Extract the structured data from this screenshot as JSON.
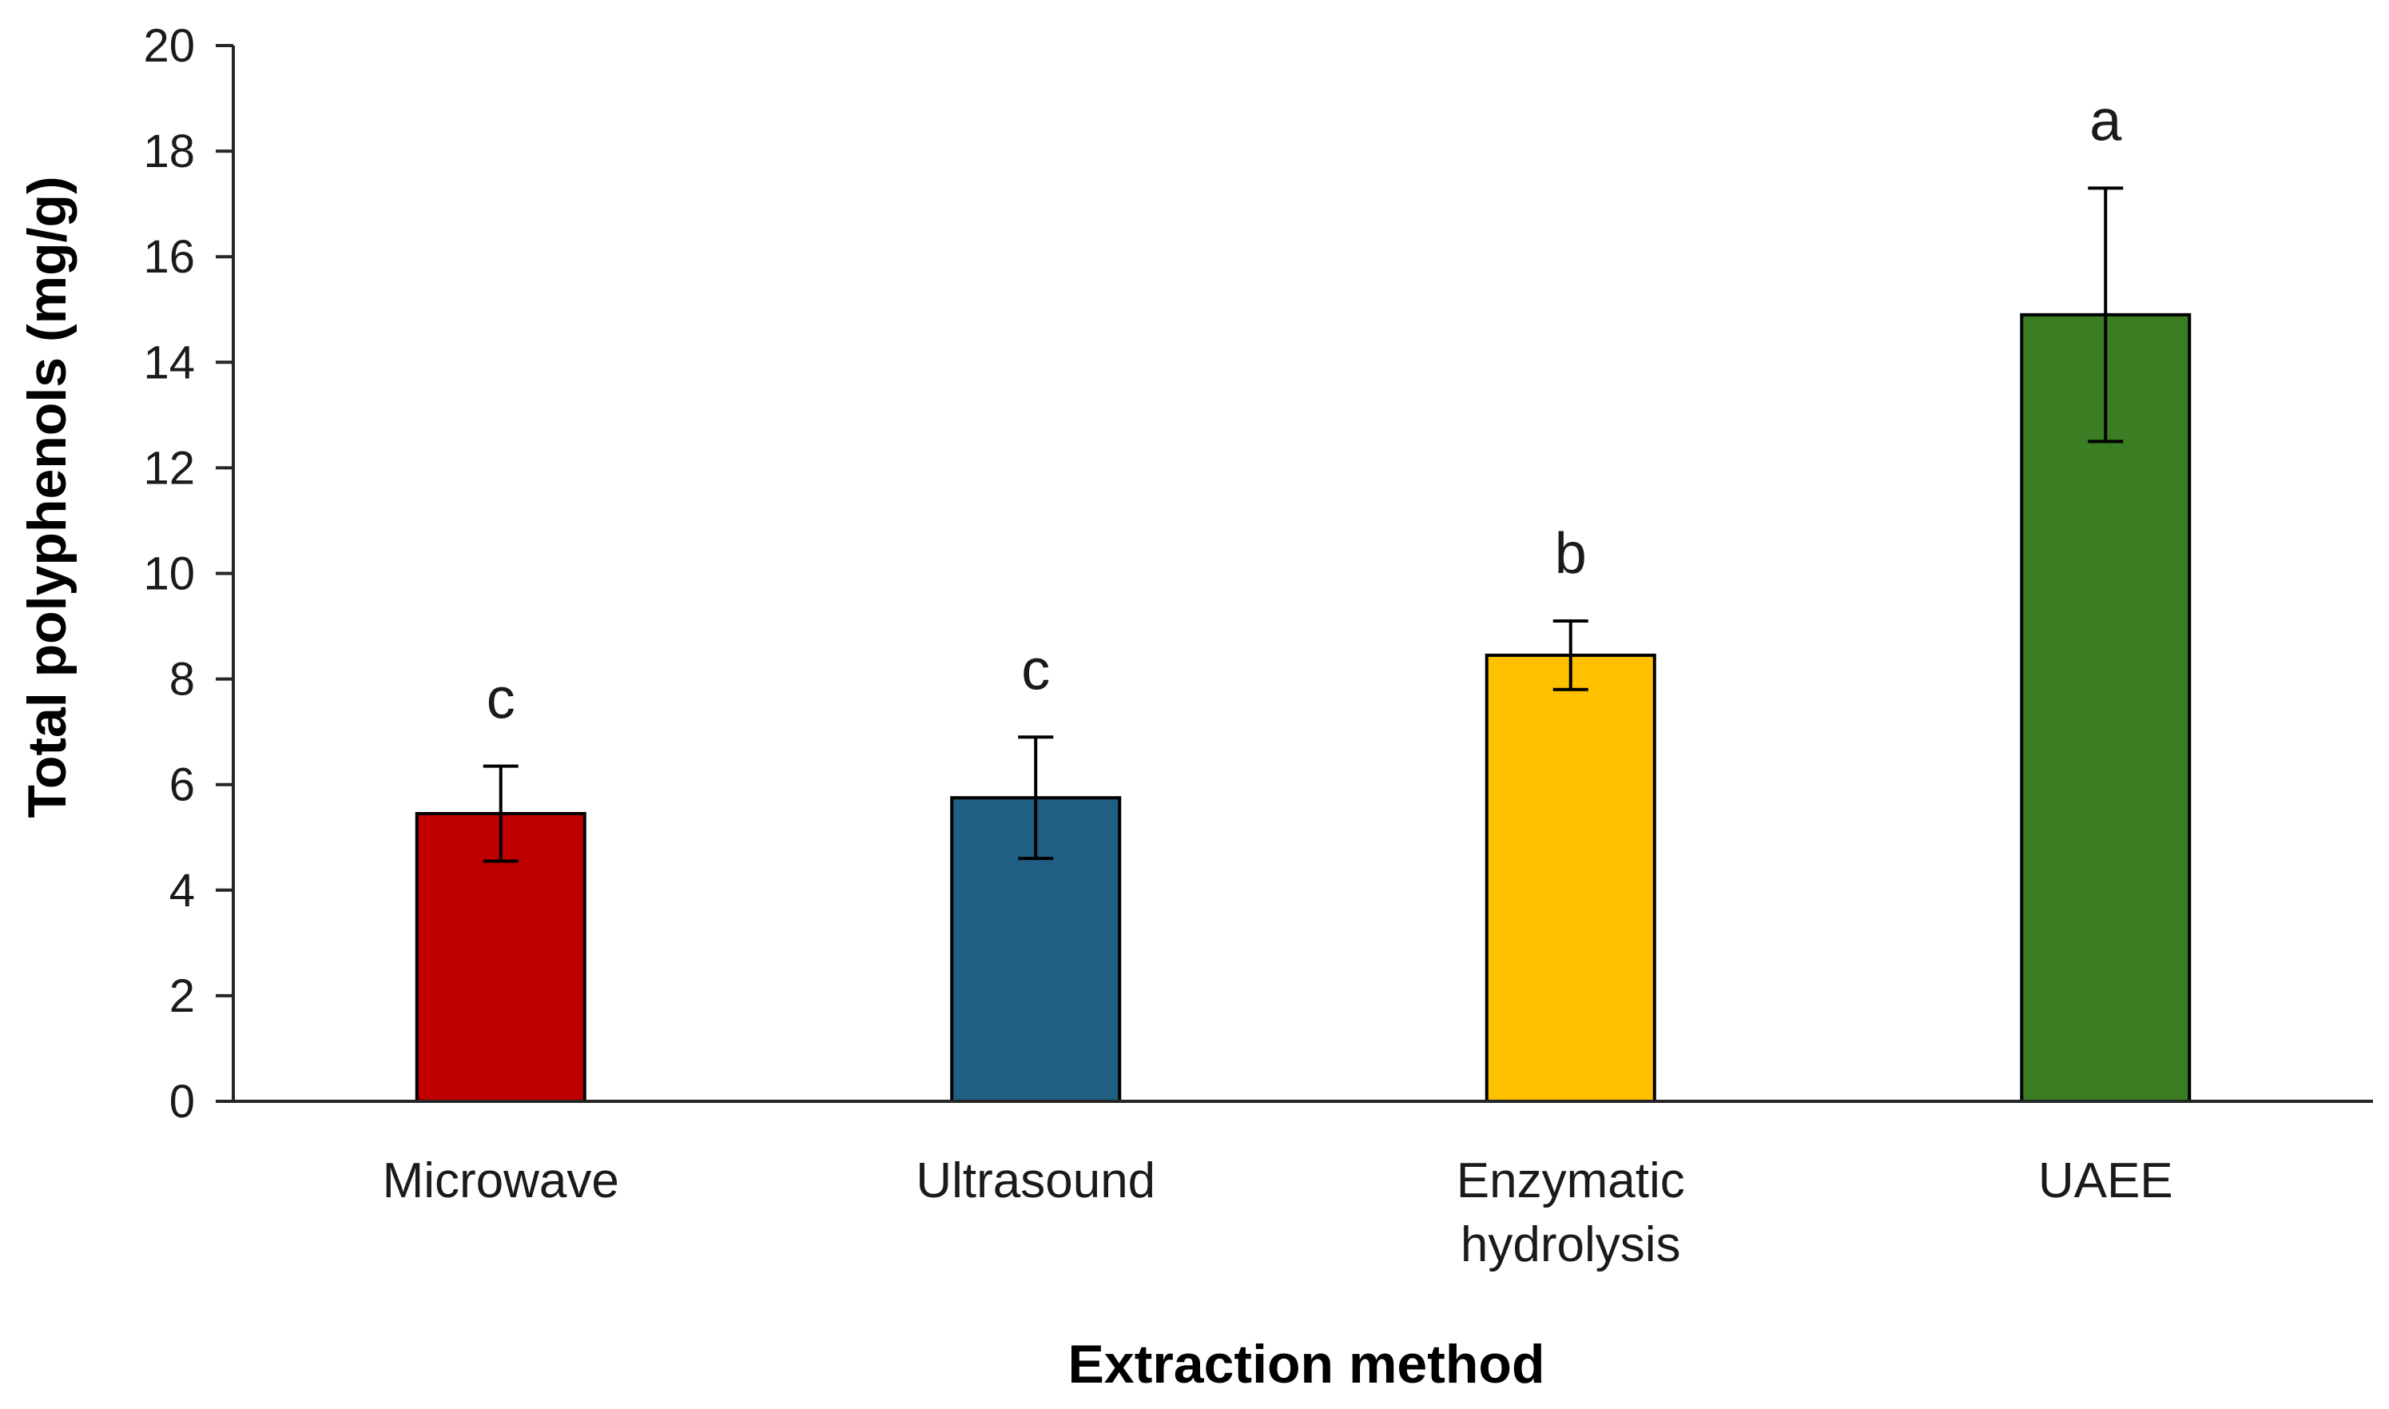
{
  "chart_data": {
    "type": "bar",
    "title": "",
    "xlabel": "Extraction method",
    "ylabel": "Total polyphenols (mg/g)",
    "ylim": [
      0,
      20
    ],
    "yticks": [
      0,
      2,
      4,
      6,
      8,
      10,
      12,
      14,
      16,
      18,
      20
    ],
    "grid": false,
    "categories": [
      [
        "Microwave"
      ],
      [
        "Ultrasound"
      ],
      [
        "Enzymatic",
        "hydrolysis"
      ],
      [
        "UAEE"
      ]
    ],
    "values": [
      5.45,
      5.75,
      8.45,
      14.9
    ],
    "errors": [
      0.9,
      1.15,
      0.65,
      2.4
    ],
    "significance_labels": [
      "c",
      "c",
      "b",
      "a"
    ],
    "colors": [
      "#c00000",
      "#1f5f82",
      "#ffc000",
      "#3a7d22"
    ]
  }
}
